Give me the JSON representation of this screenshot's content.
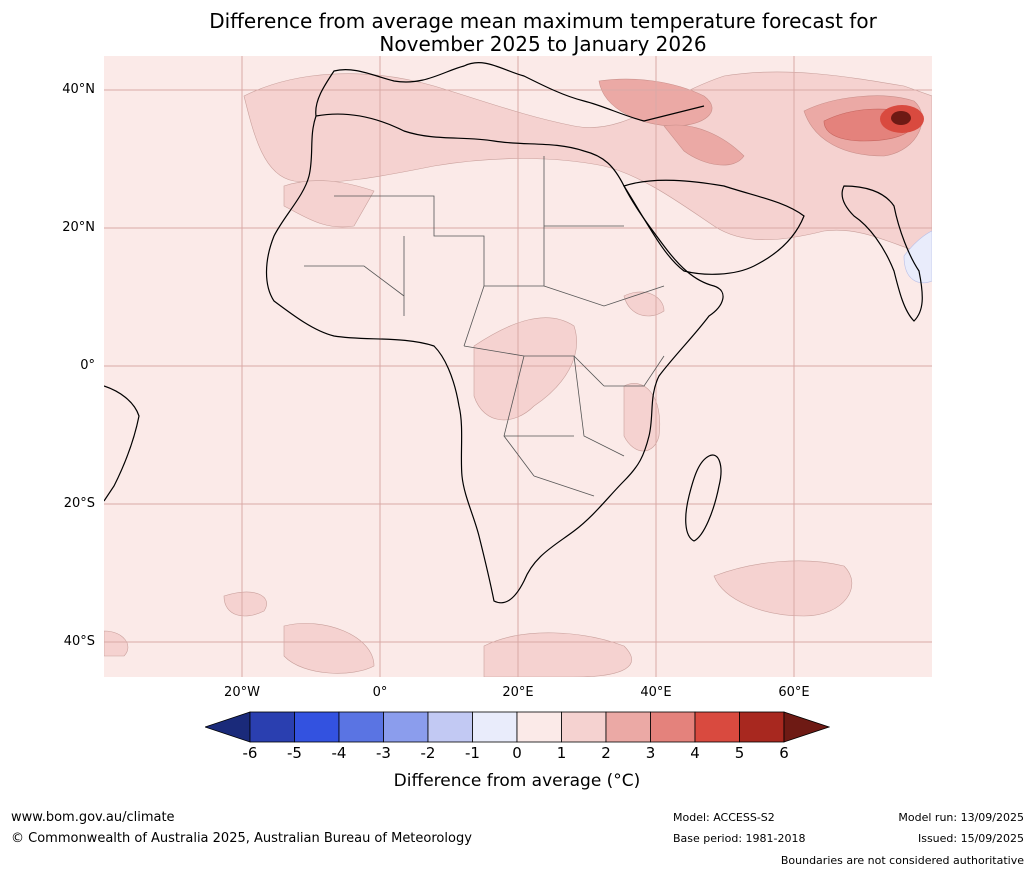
{
  "title": {
    "line1": "Difference from average mean maximum temperature forecast for",
    "line2": "November 2025 to January 2026"
  },
  "map": {
    "lat_labels": [
      "40°N",
      "20°N",
      "0°",
      "20°S",
      "40°S"
    ],
    "lon_labels": [
      "20°W",
      "0°",
      "20°E",
      "40°E",
      "60°E"
    ]
  },
  "colorbar": {
    "ticks": [
      "-6",
      "-5",
      "-4",
      "-3",
      "-2",
      "-1",
      "0",
      "1",
      "2",
      "3",
      "4",
      "5",
      "6"
    ],
    "colors": [
      "#1a2a7a",
      "#2a3fb0",
      "#3352e0",
      "#5a74e3",
      "#8b9ded",
      "#c2c9f3",
      "#e9ecfb",
      "#fbeae8",
      "#f5d2d0",
      "#eba9a5",
      "#e4827c",
      "#d94a3f",
      "#a8281f",
      "#6e1a14"
    ],
    "label": "Difference from average (°C)"
  },
  "footer": {
    "website": "www.bom.gov.au/climate",
    "copyright": "© Commonwealth of Australia 2025, Australian Bureau of Meteorology",
    "model": "Model: ACCESS-S2",
    "base_period": "Base period: 1981-2018",
    "model_run": "Model run: 13/09/2025",
    "issued": "Issued: 15/09/2025",
    "disclaimer": "Boundaries are not considered authoritative"
  }
}
